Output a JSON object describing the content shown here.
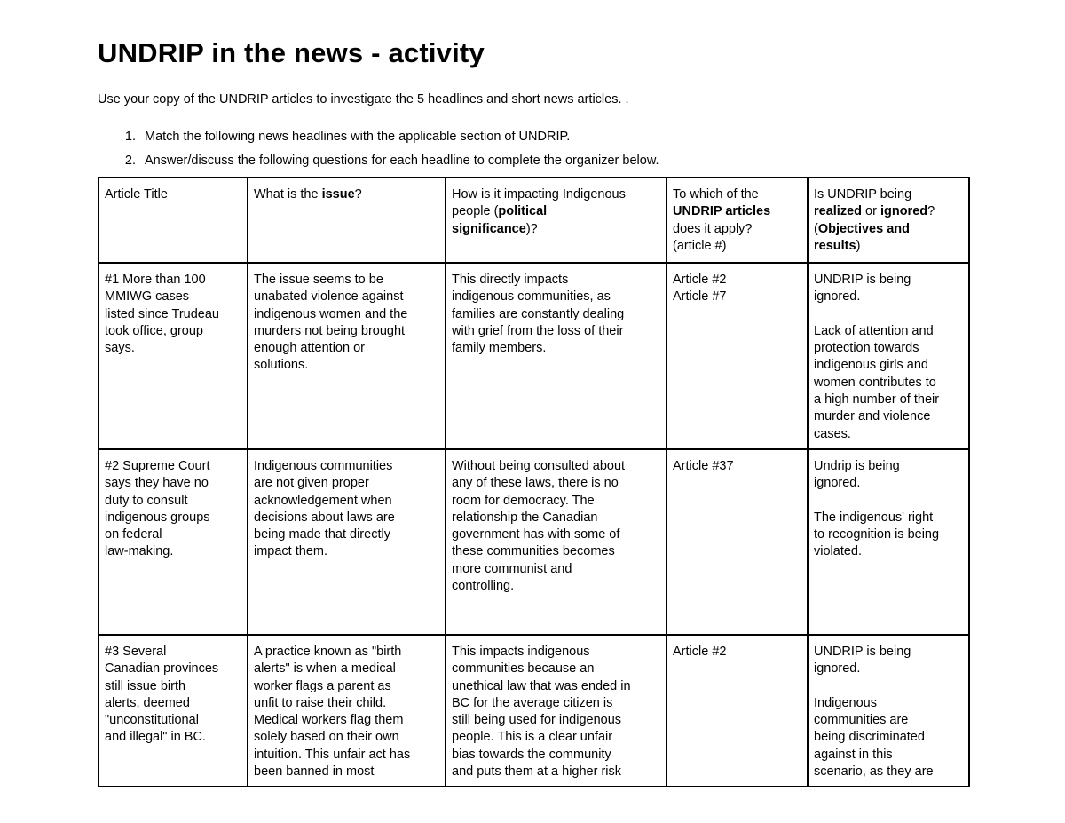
{
  "title": "UNDRIP in the news - activity",
  "intro": "Use your copy of the UNDRIP articles to investigate the 5 headlines and short news articles. .",
  "instructions": [
    {
      "num": "1.",
      "text": "Match the following news headlines with the applicable section of UNDRIP."
    },
    {
      "num": "2.",
      "text": "Answer/discuss the following questions for each headline to complete the organizer below."
    }
  ],
  "table": {
    "headers": [
      [
        {
          "t": "Article Title"
        }
      ],
      [
        {
          "t": "What is the "
        },
        {
          "t": "issue",
          "b": true
        },
        {
          "t": "?"
        }
      ],
      [
        {
          "t": "How is it impacting Indigenous\npeople ("
        },
        {
          "t": "political\nsignificance",
          "b": true
        },
        {
          "t": ")?"
        }
      ],
      [
        {
          "t": "To which of the\n"
        },
        {
          "t": "UNDRIP articles",
          "b": true
        },
        {
          "t": "\ndoes it apply?\n(article #)"
        }
      ],
      [
        {
          "t": "Is UNDRIP being\n"
        },
        {
          "t": "realized",
          "b": true
        },
        {
          "t": " or "
        },
        {
          "t": "ignored",
          "b": true
        },
        {
          "t": "?\n("
        },
        {
          "t": "Objectives and\nresults",
          "b": true
        },
        {
          "t": ")"
        }
      ]
    ],
    "rows": [
      [
        "#1 More than 100\nMMIWG cases\nlisted since Trudeau\ntook office, group\nsays.",
        "The issue seems to be\nunabated violence against\nindigenous women and the\nmurders not being brought\nenough attention or\nsolutions.",
        "This directly impacts\nindigenous communities, as\nfamilies are constantly dealing\nwith grief from the loss of their\nfamily members.",
        "Article #2\nArticle #7",
        "UNDRIP is being\nignored.\n\nLack of attention and\nprotection towards\nindigenous girls and\nwomen contributes to\na high number of their\nmurder and violence\ncases."
      ],
      [
        "#2 Supreme Court\nsays they have no\nduty to consult\nindigenous groups\non federal\nlaw-making.",
        "Indigenous communities\nare not given proper\nacknowledgement when\ndecisions about laws are\nbeing made that directly\nimpact them.",
        "Without being consulted about\nany of these laws, there is no\nroom for democracy. The\nrelationship the Canadian\ngovernment has with some of\nthese communities becomes\nmore communist and\ncontrolling.",
        "Article #37",
        "Undrip is being\nignored.\n\nThe indigenous' right\nto recognition is being\nviolated."
      ],
      [
        "#3 Several\nCanadian provinces\nstill issue birth\nalerts, deemed\n\"unconstitutional\nand illegal\" in BC.",
        "A practice known as \"birth\nalerts\" is when a medical\nworker flags a parent as\nunfit to raise their child.\nMedical workers flag them\nsolely based on their own\nintuition. This unfair act has\nbeen banned in most",
        "This impacts indigenous\ncommunities because an\nunethical law that was ended in\nBC for the average citizen is\nstill being used for indigenous\npeople. This is a clear unfair\nbias towards the community\nand puts them at a higher risk",
        "Article #2",
        "UNDRIP is being\nignored.\n\nIndigenous\ncommunities are\nbeing discriminated\nagainst in this\nscenario, as they are"
      ]
    ]
  }
}
